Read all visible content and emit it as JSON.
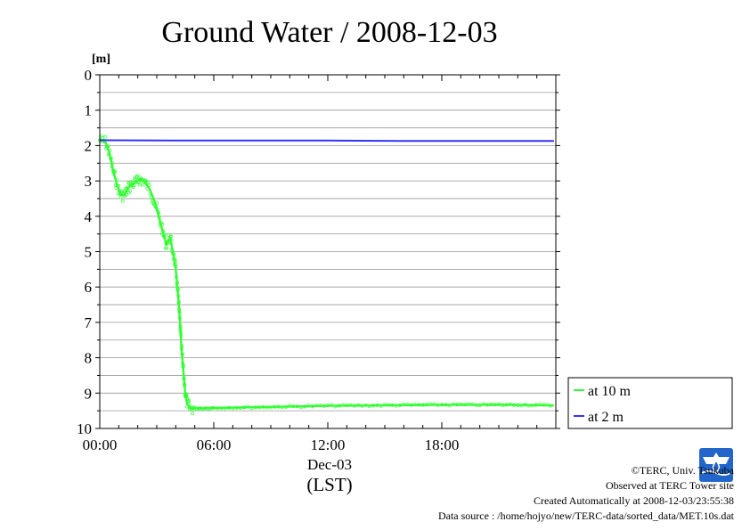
{
  "chart_data": {
    "type": "line",
    "title": "Ground Water / 2008-12-03",
    "yunit": "[m]",
    "ylim": [
      0,
      10
    ],
    "y_inverted": true,
    "yticks": [
      "0",
      "1",
      "2",
      "3",
      "4",
      "5",
      "6",
      "7",
      "8",
      "9",
      "10"
    ],
    "xlim_hours": [
      0,
      24
    ],
    "xticks": [
      {
        "hour": 0,
        "label": "00:00"
      },
      {
        "hour": 6,
        "label": "06:00"
      },
      {
        "hour": 12,
        "label": "12:00"
      },
      {
        "hour": 18,
        "label": "18:00"
      }
    ],
    "xdate": "Dec-03",
    "xlabel": "(LST)",
    "grid": "horizontal",
    "legend_position": "right-bottom",
    "series": [
      {
        "name": "at 10 m",
        "color": "#33ff33",
        "x_hours": [
          0,
          0.3,
          0.5,
          0.7,
          0.9,
          1.1,
          1.3,
          1.5,
          1.7,
          1.9,
          2.1,
          2.3,
          2.6,
          2.9,
          3.1,
          3.3,
          3.5,
          3.7,
          3.85,
          4.0,
          4.1,
          4.2,
          4.3,
          4.4,
          4.5,
          4.6,
          4.75,
          5.0,
          6.0,
          8.0,
          10.0,
          12.0,
          14.0,
          16.0,
          18.0,
          20.0,
          22.0,
          23.9
        ],
        "values": [
          1.85,
          1.9,
          2.2,
          2.7,
          3.1,
          3.4,
          3.4,
          3.2,
          3.1,
          3.05,
          2.95,
          3.0,
          3.2,
          3.6,
          4.0,
          4.4,
          4.8,
          4.6,
          5.0,
          5.5,
          6.1,
          6.8,
          7.7,
          8.4,
          9.0,
          9.3,
          9.43,
          9.43,
          9.42,
          9.4,
          9.38,
          9.36,
          9.35,
          9.34,
          9.33,
          9.33,
          9.33,
          9.35
        ]
      },
      {
        "name": "at 2 m",
        "color": "#3333ff",
        "x_hours": [
          0,
          4,
          8,
          12,
          16,
          20,
          23.9
        ],
        "values": [
          1.85,
          1.86,
          1.86,
          1.86,
          1.87,
          1.87,
          1.87
        ]
      }
    ]
  },
  "credits": {
    "copyright": "©TERC, Univ. Tsukuba",
    "observed": "Observed at TERC Tower site",
    "created": "Created Automatically at 2008-12-03/23:55:38",
    "source": "Data source : /home/hojyo/new/TERC-data/sorted_data/MET.10s.dat"
  },
  "logo": {
    "icon": "terc-logo-icon",
    "text": "TERC",
    "color": "#2266cc"
  }
}
